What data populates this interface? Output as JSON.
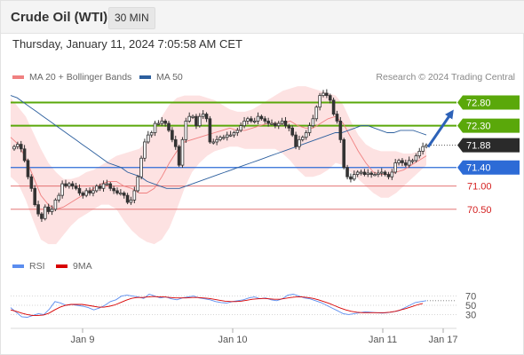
{
  "header": {
    "title": "Crude Oil (WTI)",
    "interval": "30 MIN"
  },
  "datetime": "Thursday, January 11, 2024 7:05:58 AM CET",
  "research": "Research © 2024 Trading Central",
  "legend": {
    "bollinger": "MA 20 + Bollinger Bands",
    "ma50": "MA 50",
    "rsi": "RSI",
    "rsi_ma": "9MA"
  },
  "colors": {
    "bollinger": "#f08080",
    "ma50": "#2c5f9e",
    "rsi": "#5b8def",
    "rsi_ma": "#d80000",
    "green_level": "#5aa80a",
    "blue_level": "#2d6bd6",
    "red_level": "#e06060",
    "arrow": "#2d62b8",
    "candle": "#333333"
  },
  "chart_data": [
    {
      "type": "candlestick",
      "ylim": [
        70.0,
        73.0
      ],
      "x_ticks": [
        "Jan 9",
        "Jan 10",
        "Jan 11",
        "Jan 17"
      ],
      "price_levels": [
        {
          "label": "72.80",
          "value": 72.8,
          "style": "green"
        },
        {
          "label": "72.30",
          "value": 72.3,
          "style": "green"
        },
        {
          "label": "71.88",
          "value": 71.88,
          "style": "current"
        },
        {
          "label": "71.40",
          "value": 71.4,
          "style": "blue"
        },
        {
          "label": "71.00",
          "value": 71.0,
          "style": "red"
        },
        {
          "label": "70.50",
          "value": 70.5,
          "style": "red"
        }
      ],
      "close": [
        71.85,
        71.9,
        71.8,
        71.55,
        71.2,
        70.95,
        70.6,
        70.4,
        70.3,
        70.55,
        70.45,
        70.5,
        70.7,
        70.8,
        71.05,
        71.0,
        71.05,
        71.0,
        70.95,
        70.85,
        70.8,
        70.9,
        70.85,
        70.9,
        71.0,
        70.95,
        71.05,
        71.05,
        70.95,
        70.9,
        70.85,
        70.85,
        70.8,
        70.65,
        70.7,
        70.9,
        71.2,
        71.6,
        71.95,
        72.1,
        72.15,
        72.35,
        72.35,
        72.4,
        72.35,
        72.2,
        72.0,
        71.85,
        71.45,
        72.0,
        72.4,
        72.5,
        72.5,
        72.3,
        72.5,
        72.55,
        72.45,
        71.95,
        71.95,
        72.0,
        72.05,
        72.05,
        72.1,
        72.1,
        72.15,
        72.2,
        72.3,
        72.4,
        72.45,
        72.4,
        72.4,
        72.5,
        72.45,
        72.4,
        72.35,
        72.35,
        72.3,
        72.35,
        72.4,
        72.3,
        72.25,
        72.1,
        71.85,
        72.0,
        72.05,
        72.15,
        72.3,
        72.45,
        72.7,
        72.95,
        73.0,
        72.95,
        72.85,
        72.55,
        72.4,
        72.0,
        71.4,
        71.2,
        71.15,
        71.25,
        71.3,
        71.3,
        71.25,
        71.28,
        71.25,
        71.25,
        71.28,
        71.3,
        71.25,
        71.2,
        71.3,
        71.5,
        71.55,
        71.5,
        71.45,
        71.55,
        71.55,
        71.65,
        71.75,
        71.85,
        71.88
      ],
      "ma50": [
        72.95,
        72.9,
        72.8,
        72.7,
        72.6,
        72.5,
        72.4,
        72.3,
        72.2,
        72.1,
        72.0,
        71.9,
        71.8,
        71.7,
        71.6,
        71.5,
        71.45,
        71.4,
        71.3,
        71.25,
        71.2,
        71.1,
        71.05,
        71.0,
        70.95,
        70.95,
        70.95,
        71.0,
        71.05,
        71.1,
        71.15,
        71.2,
        71.25,
        71.3,
        71.35,
        71.4,
        71.45,
        71.5,
        71.55,
        71.6,
        71.65,
        71.7,
        71.75,
        71.8,
        71.85,
        71.9,
        71.95,
        72.0,
        72.05,
        72.1,
        72.15,
        72.15,
        72.2,
        72.25,
        72.3,
        72.3,
        72.25,
        72.2,
        72.15,
        72.15,
        72.2,
        72.2,
        72.2,
        72.15,
        72.1
      ],
      "bb_mid": [
        72.05,
        71.9,
        71.6,
        71.2,
        70.8,
        70.6,
        70.5,
        70.55,
        70.65,
        70.75,
        70.85,
        70.95,
        71.05,
        71.1,
        71.1,
        71.0,
        70.95,
        70.85,
        70.85,
        70.95,
        71.2,
        71.5,
        71.75,
        71.95,
        72.0,
        72.05,
        72.1,
        72.15,
        72.2,
        72.25,
        72.2,
        72.2,
        72.25,
        72.3,
        72.35,
        72.35,
        72.35,
        72.4,
        72.3,
        72.25,
        72.25,
        72.35,
        72.45,
        72.5,
        72.35,
        72.05,
        71.75,
        71.5,
        71.3,
        71.25,
        71.25,
        71.3,
        71.35,
        71.45,
        71.55,
        71.65
      ],
      "bb_upper": [
        72.9,
        72.7,
        72.5,
        72.15,
        71.8,
        71.5,
        71.3,
        71.15,
        71.15,
        71.2,
        71.3,
        71.35,
        71.45,
        71.55,
        71.65,
        71.7,
        71.75,
        71.8,
        71.95,
        72.2,
        72.5,
        72.75,
        72.9,
        72.95,
        72.95,
        72.95,
        72.9,
        72.85,
        72.75,
        72.65,
        72.6,
        72.6,
        72.65,
        72.75,
        72.85,
        72.95,
        73.05,
        73.1,
        73.15,
        73.15,
        73.1,
        73.05,
        73.0,
        72.95,
        72.75,
        72.4,
        72.1,
        71.9,
        71.8,
        71.75,
        71.75,
        71.75,
        71.7,
        71.7,
        71.75,
        71.8
      ],
      "bb_lower": [
        71.2,
        71.05,
        70.7,
        70.25,
        69.85,
        69.75,
        69.75,
        69.95,
        70.15,
        70.3,
        70.4,
        70.5,
        70.6,
        70.6,
        70.5,
        70.25,
        70.05,
        69.9,
        69.8,
        69.75,
        69.85,
        70.1,
        70.5,
        70.95,
        71.3,
        71.5,
        71.65,
        71.75,
        71.8,
        71.85,
        71.85,
        71.8,
        71.8,
        71.8,
        71.8,
        71.8,
        71.7,
        71.55,
        71.35,
        71.2,
        71.2,
        71.25,
        71.35,
        71.5,
        71.45,
        71.3,
        71.15,
        71.0,
        70.85,
        70.75,
        70.75,
        70.85,
        71.0,
        71.15,
        71.3,
        71.45
      ],
      "arrow": {
        "from": 71.88,
        "to": 72.3
      }
    },
    {
      "type": "line",
      "name": "RSI",
      "ylim": [
        0,
        100
      ],
      "y_ticks": [
        70,
        50,
        30
      ],
      "rsi": [
        45,
        35,
        25,
        24,
        28,
        32,
        30,
        42,
        58,
        55,
        50,
        52,
        50,
        48,
        45,
        40,
        44,
        50,
        58,
        62,
        70,
        72,
        70,
        68,
        65,
        74,
        70,
        66,
        68,
        64,
        62,
        66,
        68,
        70,
        66,
        64,
        62,
        58,
        56,
        55,
        58,
        60,
        62,
        66,
        68,
        64,
        66,
        62,
        60,
        64,
        72,
        74,
        70,
        66,
        64,
        60,
        56,
        50,
        44,
        38,
        32,
        30,
        32,
        34,
        36,
        35,
        34,
        33,
        34,
        36,
        38,
        44,
        50,
        56,
        58,
        60
      ],
      "rsi_ma": [
        40,
        37,
        33,
        30,
        28,
        28,
        29,
        33,
        40,
        46,
        50,
        52,
        52,
        52,
        50,
        48,
        46,
        46,
        48,
        51,
        56,
        61,
        65,
        67,
        67,
        68,
        69,
        68,
        68,
        67,
        66,
        66,
        66,
        67,
        67,
        66,
        65,
        63,
        61,
        59,
        58,
        58,
        59,
        61,
        63,
        64,
        65,
        64,
        63,
        63,
        65,
        67,
        68,
        68,
        67,
        65,
        62,
        58,
        54,
        49,
        44,
        40,
        37,
        35,
        34,
        34,
        34,
        34,
        34,
        35,
        37,
        40,
        43,
        47,
        51,
        54
      ]
    }
  ]
}
